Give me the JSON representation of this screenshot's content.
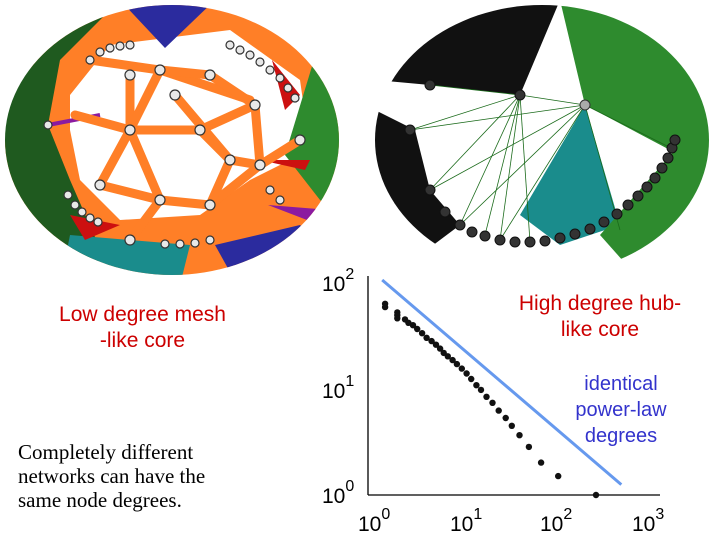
{
  "labels": {
    "left_core": [
      "Low degree mesh",
      "-like core"
    ],
    "right_core": [
      "High degree hub-",
      "like core"
    ],
    "identical": [
      "identical",
      "power-law",
      "degrees"
    ],
    "caption": [
      "Completely different",
      "networks can have the",
      "same node degrees."
    ]
  },
  "colors": {
    "red_label": "#cc0000",
    "blue_label": "#3333cc",
    "mesh_links": "#ff7f27",
    "fit_line": "#6699ee",
    "dark_green": "#1f5a1f",
    "green": "#2e8b2e",
    "teal": "#1a8c8c",
    "navy": "#2b2b9e",
    "purple": "#8b1aa0",
    "red": "#cc1010"
  },
  "chart_data": {
    "type": "scatter",
    "xscale": "log",
    "yscale": "log",
    "xlim": [
      1,
      1000
    ],
    "ylim": [
      1,
      100
    ],
    "x_ticks": [
      {
        "base": "10",
        "exp": "0"
      },
      {
        "base": "10",
        "exp": "1"
      },
      {
        "base": "10",
        "exp": "2"
      },
      {
        "base": "10",
        "exp": "3"
      }
    ],
    "y_ticks": [
      {
        "base": "10",
        "exp": "2"
      },
      {
        "base": "10",
        "exp": "1"
      },
      {
        "base": "10",
        "exp": "0"
      }
    ],
    "points": [
      [
        1.5,
        60
      ],
      [
        1.5,
        56
      ],
      [
        2.0,
        50
      ],
      [
        2.0,
        47
      ],
      [
        2.0,
        44
      ],
      [
        2.4,
        43
      ],
      [
        2.6,
        40
      ],
      [
        2.9,
        38
      ],
      [
        3.2,
        35
      ],
      [
        3.6,
        32
      ],
      [
        4.0,
        29
      ],
      [
        4.5,
        27
      ],
      [
        5.0,
        25
      ],
      [
        5.5,
        23
      ],
      [
        6.0,
        21
      ],
      [
        6.6,
        19.5
      ],
      [
        7.4,
        18
      ],
      [
        8.2,
        16.5
      ],
      [
        9.2,
        15
      ],
      [
        10.3,
        13.5
      ],
      [
        11.5,
        12
      ],
      [
        13,
        10.5
      ],
      [
        14.5,
        9.5
      ],
      [
        16.5,
        8.2
      ],
      [
        19,
        7.2
      ],
      [
        22,
        6.1
      ],
      [
        26,
        5.2
      ],
      [
        30,
        4.4
      ],
      [
        36,
        3.6
      ],
      [
        45,
        2.8
      ],
      [
        60,
        2.0
      ],
      [
        90,
        1.5
      ],
      [
        220,
        1.0
      ]
    ],
    "fit_line": {
      "from": [
        1.4,
        100
      ],
      "to": [
        400,
        1.25
      ]
    }
  }
}
